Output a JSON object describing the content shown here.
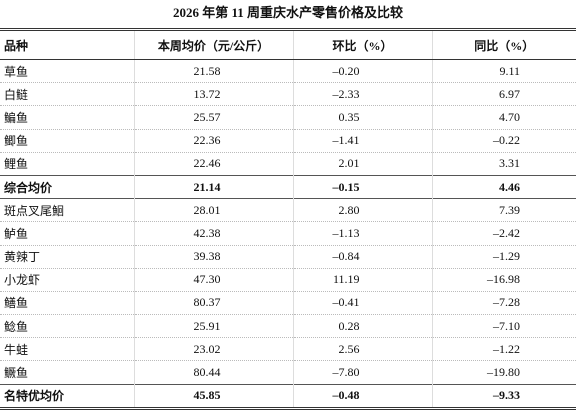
{
  "title": "2026 年第 11 周重庆水产零售价格及比较",
  "table": {
    "header": [
      "品种",
      "本周均价（元/公斤）",
      "环比（%）",
      "同比（%）"
    ],
    "rows": [
      [
        "草鱼",
        "21.58",
        "–0.20",
        "9.11"
      ],
      [
        "白鲢",
        "13.72",
        "–2.33",
        "6.97"
      ],
      [
        "鳊鱼",
        "25.57",
        "0.35",
        "4.70"
      ],
      [
        "鲫鱼",
        "22.36",
        "–1.41",
        "–0.22"
      ],
      [
        "鲤鱼",
        "22.46",
        "2.01",
        "3.31"
      ],
      [
        "综合均价",
        "21.14",
        "–0.15",
        "4.46"
      ],
      [
        "斑点叉尾鮰",
        "28.01",
        "2.80",
        "7.39"
      ],
      [
        "鲈鱼",
        "42.38",
        "–1.13",
        "–2.42"
      ],
      [
        "黄辣丁",
        "39.38",
        "–0.84",
        "–1.29"
      ],
      [
        "小龙虾",
        "47.30",
        "11.19",
        "–16.98"
      ],
      [
        "鳝鱼",
        "80.37",
        "–0.41",
        "–7.28"
      ],
      [
        "鲶鱼",
        "25.91",
        "0.28",
        "–7.10"
      ],
      [
        "牛蛙",
        "23.02",
        "2.56",
        "–1.22"
      ],
      [
        "鳜鱼",
        "80.44",
        "–7.80",
        "–19.80"
      ],
      [
        "名特优均价",
        "45.85",
        "–0.48",
        "–9.33"
      ]
    ]
  }
}
